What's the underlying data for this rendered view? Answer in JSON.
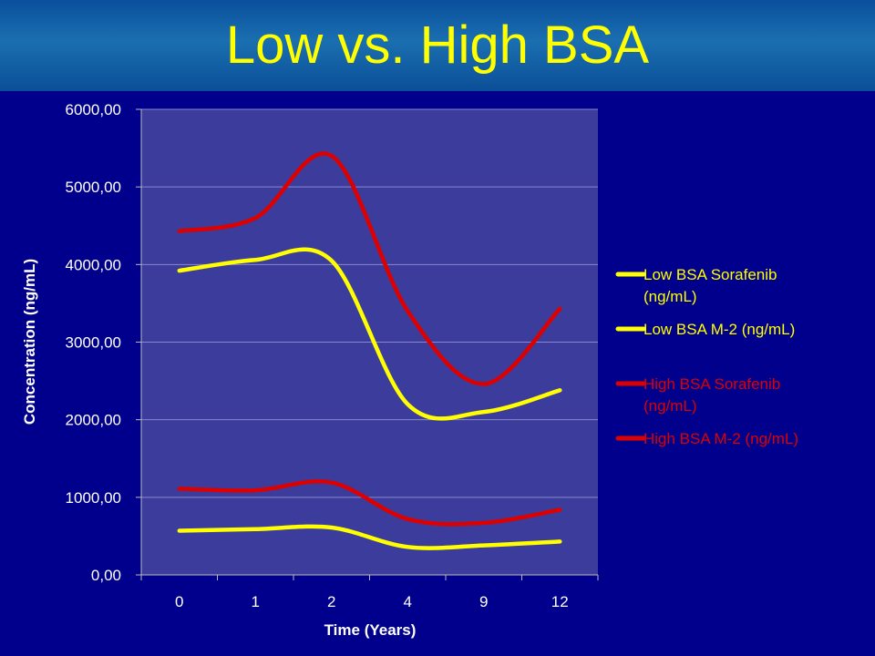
{
  "slide": {
    "title": "Low vs. High BSA"
  },
  "colors": {
    "background": "#00008c",
    "plot_area": "#3c3c9c",
    "title": "#ffff00",
    "yellow": "#ffff00",
    "red": "#dd0000"
  },
  "chart_data": {
    "type": "line",
    "categories": [
      "0",
      "1",
      "2",
      "4",
      "9",
      "12"
    ],
    "xlabel": "Time (Years)",
    "ylabel": "Concentration (ng/mL)",
    "ylim": [
      0,
      6000
    ],
    "yticks": [
      "0,00",
      "1000,00",
      "2000,00",
      "3000,00",
      "4000,00",
      "5000,00",
      "6000,00"
    ],
    "grid": true,
    "legend_position": "right",
    "series": [
      {
        "name": "Low BSA Sorafenib (ng/mL)",
        "name_lines": [
          "Low BSA Sorafenib",
          "(ng/mL)"
        ],
        "color": "#ffff00",
        "values": [
          3920,
          4060,
          4050,
          2200,
          2100,
          2380
        ]
      },
      {
        "name": "Low BSA M-2 (ng/mL)",
        "name_lines": [
          "Low BSA M-2 (ng/mL)"
        ],
        "color": "#ffff00",
        "values": [
          570,
          590,
          610,
          360,
          380,
          430
        ]
      },
      {
        "name": "High BSA Sorafenib (ng/mL)",
        "name_lines": [
          "High BSA Sorafenib",
          "(ng/mL)"
        ],
        "color": "#dd0000",
        "values": [
          4430,
          4600,
          5400,
          3400,
          2460,
          3430
        ]
      },
      {
        "name": "High BSA M-2 (ng/mL)",
        "name_lines": [
          "High BSA M-2 (ng/mL)"
        ],
        "color": "#dd0000",
        "values": [
          1110,
          1090,
          1190,
          720,
          670,
          840
        ]
      }
    ]
  }
}
